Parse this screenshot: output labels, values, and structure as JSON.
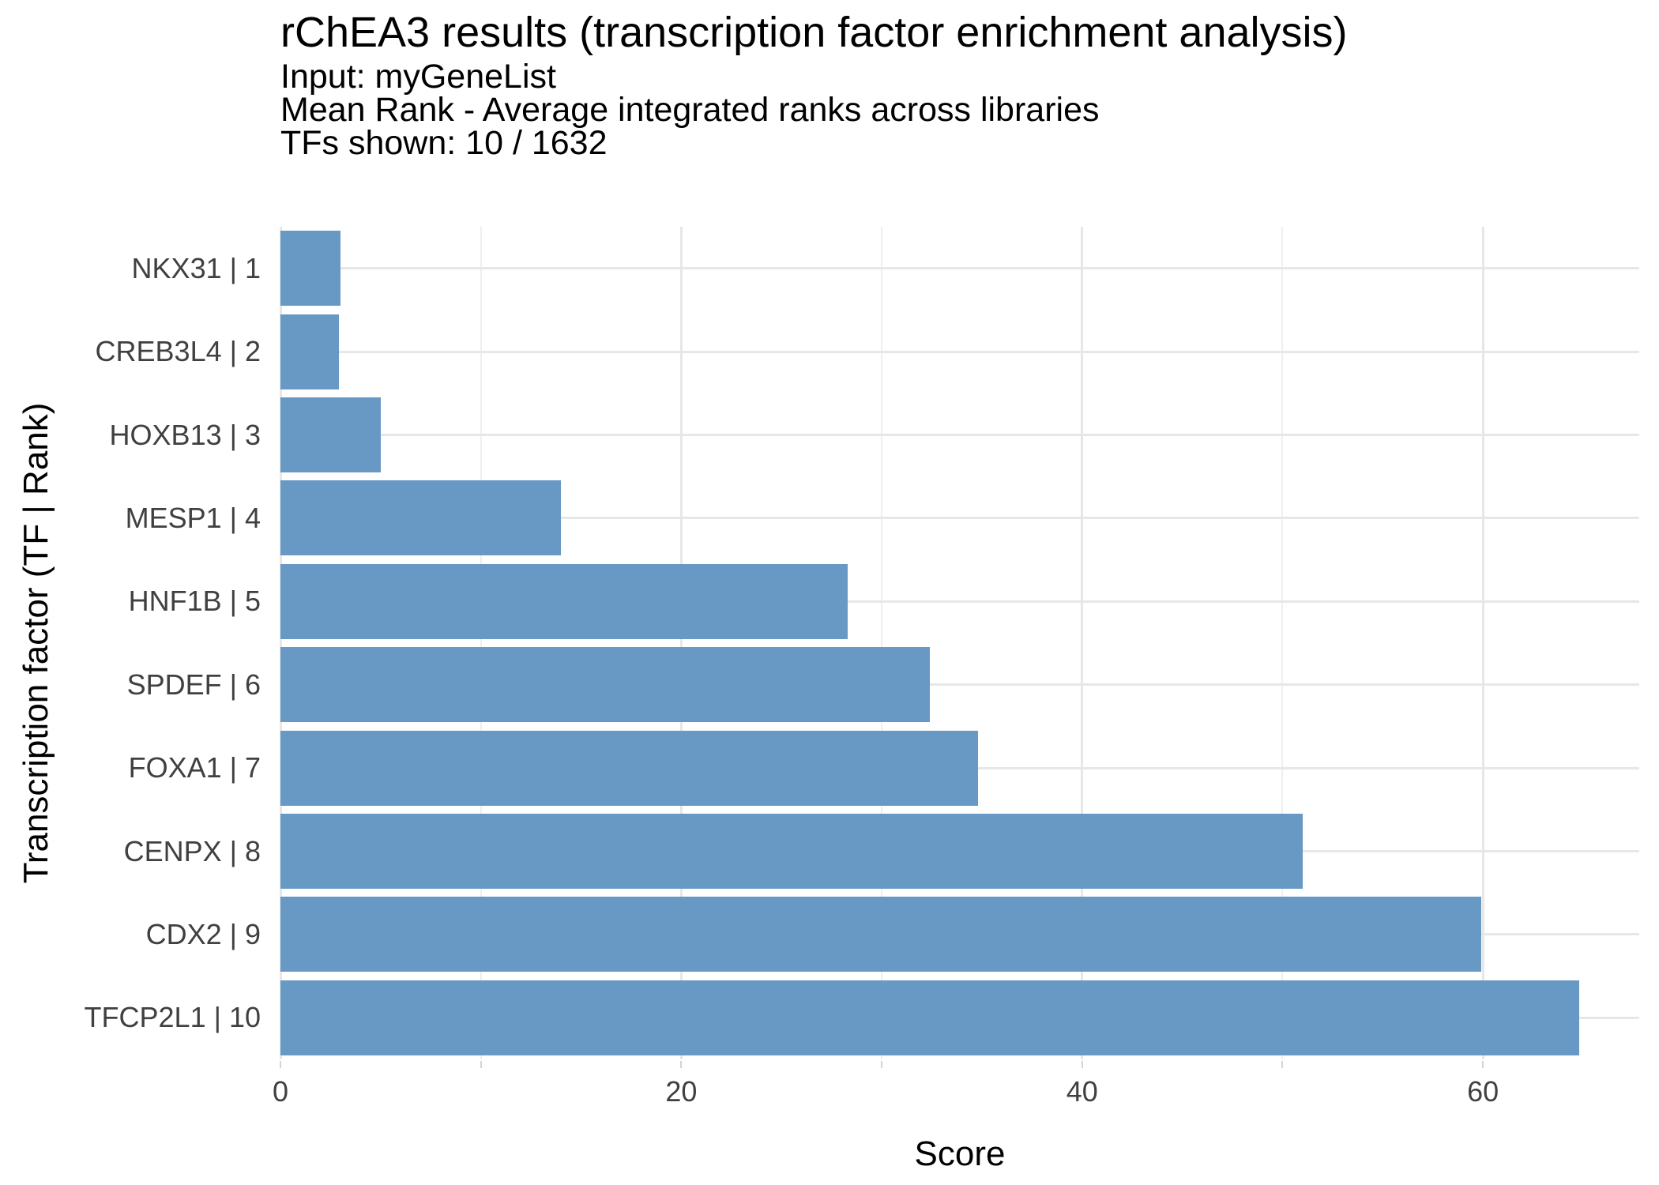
{
  "chart_data": {
    "type": "bar",
    "orientation": "horizontal",
    "title": "rChEA3 results (transcription factor enrichment analysis)",
    "subtitle_lines": [
      "Input: myGeneList",
      "Mean Rank - Average integrated ranks across libraries",
      "TFs shown: 10 / 1632"
    ],
    "xlabel": "Score",
    "ylabel": "Transcription factor (TF | Rank)",
    "categories": [
      "NKX31 | 1",
      "CREB3L4 | 2",
      "HOXB13 | 3",
      "MESP1 | 4",
      "HNF1B | 5",
      "SPDEF | 6",
      "FOXA1 | 7",
      "CENPX | 8",
      "CDX2 | 9",
      "TFCP2L1 | 10"
    ],
    "values": [
      3.0,
      2.9,
      5.0,
      14.0,
      28.3,
      32.4,
      34.8,
      51.0,
      59.9,
      64.8
    ],
    "xlim": [
      0,
      67.8
    ],
    "x_major_ticks": [
      0,
      20,
      40,
      60
    ],
    "x_minor_ticks": [
      10,
      30,
      50
    ],
    "grid": "on",
    "legend": "none",
    "bar_color": "#6899c5",
    "major_grid_color": "#e7e7e7",
    "minor_grid_color": "#efefef",
    "tick_mark_color": "#d4d4d4",
    "axis_text_color": "#404040",
    "title_color": "#000000"
  }
}
